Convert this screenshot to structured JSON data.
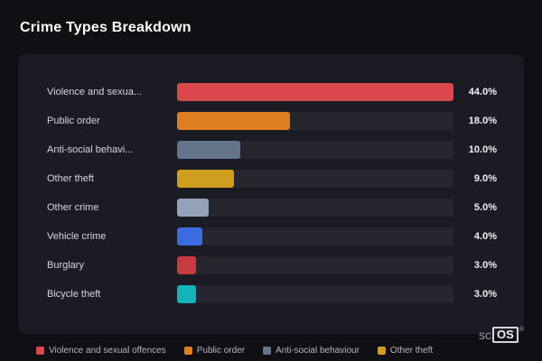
{
  "title": "Crime Types Breakdown",
  "chart_data": {
    "type": "bar",
    "orientation": "horizontal",
    "title": "Crime Types Breakdown",
    "categories": [
      "Violence and sexual offences",
      "Public order",
      "Anti-social behaviour",
      "Other theft",
      "Other crime",
      "Vehicle crime",
      "Burglary",
      "Bicycle theft"
    ],
    "display_labels": [
      "Violence and sexua...",
      "Public order",
      "Anti-social behavi...",
      "Other theft",
      "Other crime",
      "Vehicle crime",
      "Burglary",
      "Bicycle theft"
    ],
    "values": [
      44.0,
      18.0,
      10.0,
      9.0,
      5.0,
      4.0,
      3.0,
      3.0
    ],
    "value_labels": [
      "44.0%",
      "18.0%",
      "10.0%",
      "9.0%",
      "5.0%",
      "4.0%",
      "3.0%",
      "3.0%"
    ],
    "bar_colors": [
      "#d9484e",
      "#df7e22",
      "#64748b",
      "#cf9e1e",
      "#94a3b8",
      "#3b6be0",
      "#c63a40",
      "#14b3ba"
    ],
    "xlim": [
      0,
      44
    ],
    "unit": "%",
    "grid": false,
    "legend_position": "bottom"
  },
  "legend": {
    "items": [
      {
        "label": "Violence and sexual offences",
        "color": "#d9484e"
      },
      {
        "label": "Public order",
        "color": "#df7e22"
      },
      {
        "label": "Anti-social behaviour",
        "color": "#64748b"
      },
      {
        "label": "Other theft",
        "color": "#cf9e1e"
      }
    ]
  },
  "watermark": {
    "prefix": "sc",
    "boxed": "OS",
    "registered": "®"
  },
  "colors": {
    "background": "#0f0f14",
    "card": "#1b1b23",
    "track": "#26262e",
    "title_text": "#ffffff",
    "label_text": "#d6d6dc",
    "value_text": "#f0f0f4",
    "legend_text": "#b6b6be"
  }
}
